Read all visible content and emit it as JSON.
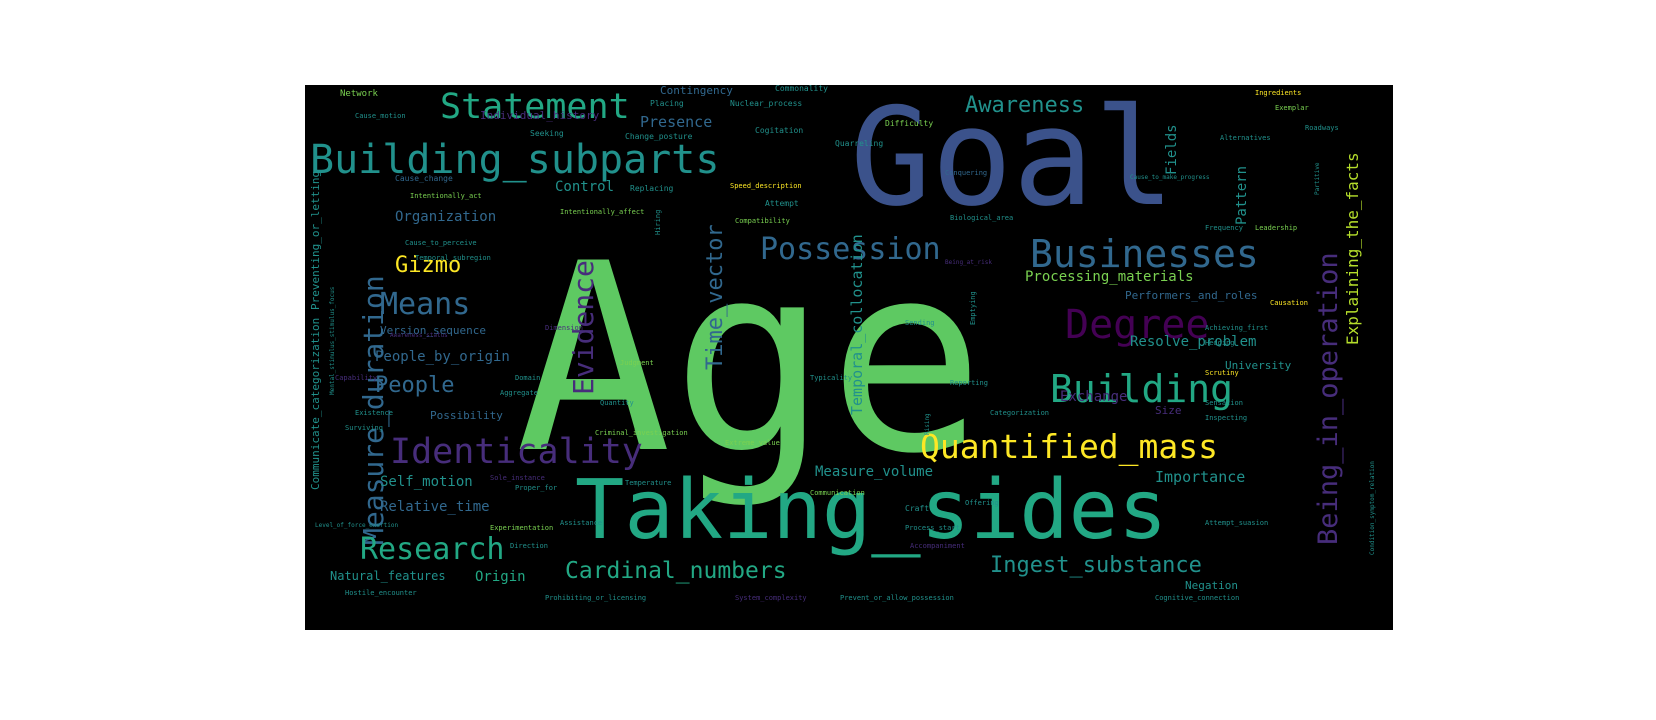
{
  "palette": {
    "background": "#000000",
    "green": "#5ec962",
    "bright_green": "#7ad151",
    "teal": "#21918c",
    "teal_light": "#22a884",
    "blue": "#3b528b",
    "slate": "#31688e",
    "purple": "#440154",
    "violet": "#472d7b",
    "yellow": "#fde725",
    "lime": "#b5de2b"
  },
  "words": [
    "Age",
    "Goal",
    "Taking_sides",
    "Building_subparts",
    "Statement",
    "Businesses",
    "Quantified_mass",
    "Being_in_operation",
    "Identicality",
    "Measure_duration",
    "Possession",
    "Degree",
    "Building",
    "Evidence",
    "Means",
    "Research",
    "Cardinal_numbers",
    "Ingest_substance",
    "Awareness",
    "Time_vector",
    "People",
    "Gizmo",
    "Explaining_the_facts",
    "Temporal_collocation",
    "Processing_materials",
    "People_by_origin",
    "Control",
    "Organization",
    "Relative_time",
    "Self_motion",
    "Measure_volume",
    "Natural_features",
    "Origin",
    "Importance",
    "Resolve_problem",
    "Exchange",
    "Presence",
    "Pattern",
    "Fields",
    "Performers_and_roles",
    "Communicate_categorization",
    "Preventing_or_letting",
    "Contingency",
    "Individual_history",
    "Version_sequence",
    "Possibility",
    "Size",
    "University",
    "Negation",
    "Network",
    "Commonality",
    "Placing",
    "Nuclear_process",
    "Cause_motion",
    "Change_posture",
    "Cogitation",
    "Quarreling",
    "Difficulty",
    "Cause_change",
    "Intentionally_act",
    "Replacing",
    "Speed_description",
    "Intentionally_affect",
    "Attempt",
    "Compatibility",
    "Cause_to_perceive",
    "Temporal_subregion",
    "Hiring",
    "Frequency",
    "Leadership",
    "Causation",
    "Ingredients",
    "Exemplar",
    "Roadways",
    "Alternatives",
    "Seeking",
    "Judgment",
    "Quantity",
    "Criminal_investigation",
    "Typicality",
    "Reporting",
    "Sending",
    "Hedging",
    "Scrutiny",
    "Categorization",
    "Sensation",
    "Inspecting",
    "Assistance",
    "Temperature",
    "Communication",
    "Craft",
    "Offering",
    "Process_start",
    "Accompaniment",
    "Direction",
    "Experimentation",
    "Extreme_value",
    "Level_of_force_exertion",
    "Hostile_encounter",
    "Prohibiting_or_licensing",
    "System_complexity",
    "Prevent_or_allow_possession",
    "Cognitive_connection",
    "Condition_symptom_relation",
    "Attempt_suasion",
    "Achieving_first",
    "Domain",
    "Aggregate",
    "Existence",
    "Surviving",
    "Capability",
    "Conquering",
    "Biological_area",
    "Cause_to_make_progress",
    "Dimension",
    "Mental_stimulus_stimulus_focus",
    "Emptying",
    "Rising",
    "Sole_instance",
    "Proper_for",
    "Being_at_risk",
    "Awareness_status",
    "Partitive"
  ]
}
